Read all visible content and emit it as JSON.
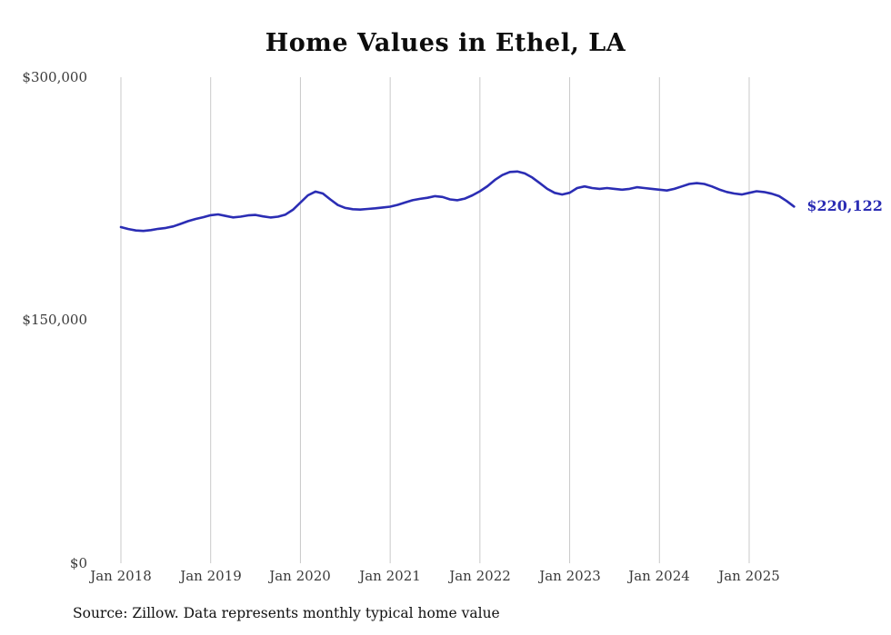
{
  "title": "Home Values in Ethel, LA",
  "end_label": "$220,122",
  "source_note": "Source: Zillow. Data represents monthly typical home value",
  "colors": {
    "line": "#2b2db4",
    "grid": "#c9c9c9",
    "axis_text": "#3a3a3a",
    "end_label": "#2b2db4"
  },
  "chart_data": {
    "type": "line",
    "title": "Home Values in Ethel, LA",
    "frequency": "monthly",
    "x_start": "2018-01",
    "x_end": "2025-07",
    "ylim": [
      0,
      300000
    ],
    "y_ticks": [
      0,
      150000,
      300000
    ],
    "y_tick_labels": [
      "$0",
      "$150,000",
      "$300,000"
    ],
    "x_tick_labels": [
      "Jan 2018",
      "Jan 2019",
      "Jan 2020",
      "Jan 2021",
      "Jan 2022",
      "Jan 2023",
      "Jan 2024",
      "Jan 2025"
    ],
    "grid": "vertical-gridlines-only",
    "legend": "none",
    "last_value": 220122,
    "last_value_label": "$220,122",
    "series": [
      {
        "name": "Typical home value",
        "values": [
          207500,
          206300,
          205400,
          205100,
          205600,
          206400,
          207000,
          207900,
          209500,
          211200,
          212500,
          213600,
          214800,
          215300,
          214400,
          213500,
          213900,
          214700,
          215000,
          214100,
          213400,
          213900,
          215200,
          218200,
          222600,
          227100,
          229400,
          228200,
          224600,
          221100,
          219300,
          218500,
          218300,
          218700,
          219100,
          219600,
          220100,
          221200,
          222700,
          224100,
          224900,
          225600,
          226600,
          226100,
          224600,
          224100,
          225100,
          227100,
          229600,
          232700,
          236600,
          239600,
          241500,
          241800,
          240600,
          238100,
          234600,
          231100,
          228600,
          227600,
          228700,
          231600,
          232600,
          231600,
          231100,
          231600,
          231100,
          230600,
          231100,
          232100,
          231600,
          231100,
          230600,
          230100,
          231100,
          232600,
          234100,
          234600,
          234100,
          232600,
          230700,
          229200,
          228200,
          227600,
          228600,
          229600,
          229100,
          228100,
          226600,
          223600,
          220122
        ]
      }
    ]
  }
}
